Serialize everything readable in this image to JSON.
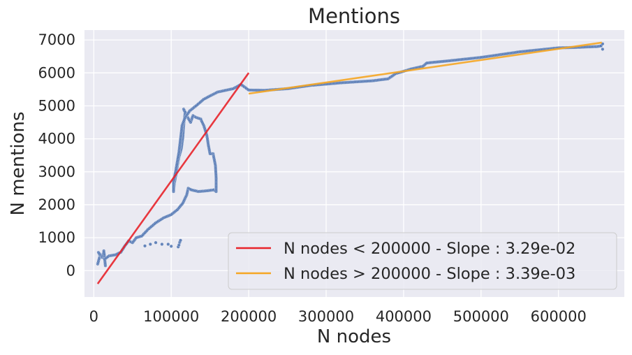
{
  "chart_data": {
    "type": "scatter",
    "title": "Mentions",
    "xlabel": "N nodes",
    "ylabel": "N mentions",
    "xlim": [
      -12000,
      685000
    ],
    "ylim": [
      -800,
      7300
    ],
    "xticks": [
      0,
      100000,
      200000,
      300000,
      400000,
      500000,
      600000
    ],
    "xtick_labels": [
      "0",
      "100000",
      "200000",
      "300000",
      "400000",
      "500000",
      "600000"
    ],
    "yticks": [
      0,
      1000,
      2000,
      3000,
      4000,
      5000,
      6000,
      7000
    ],
    "ytick_labels": [
      "0",
      "1000",
      "2000",
      "3000",
      "4000",
      "5000",
      "6000",
      "7000"
    ],
    "grid": true,
    "legend_position": "bottom-right",
    "colors": {
      "points": "#4c72b0",
      "fit_low": "#e8232a",
      "fit_high": "#f5a623",
      "plot_bg": "#eaeaf2",
      "grid": "#ffffff"
    },
    "scatter_path": [
      [
        5000,
        200
      ],
      [
        8000,
        450
      ],
      [
        6000,
        550
      ],
      [
        11000,
        400
      ],
      [
        13000,
        600
      ],
      [
        15000,
        150
      ],
      [
        14000,
        350
      ],
      [
        20000,
        450
      ],
      [
        28000,
        480
      ],
      [
        35000,
        560
      ],
      [
        40000,
        750
      ],
      [
        45000,
        900
      ],
      [
        50000,
        850
      ],
      [
        55000,
        1000
      ],
      [
        62000,
        1050
      ],
      [
        70000,
        1250
      ],
      [
        80000,
        1450
      ],
      [
        90000,
        1600
      ],
      [
        100000,
        1700
      ],
      [
        108000,
        1850
      ],
      [
        115000,
        2050
      ],
      [
        120000,
        2300
      ],
      [
        122000,
        2500
      ],
      [
        126000,
        2450
      ],
      [
        135000,
        2400
      ],
      [
        145000,
        2420
      ],
      [
        155000,
        2450
      ],
      [
        158000,
        2400
      ],
      [
        158000,
        2800
      ],
      [
        157000,
        3200
      ],
      [
        154000,
        3550
      ],
      [
        150000,
        3550
      ],
      [
        148000,
        3800
      ],
      [
        146000,
        4100
      ],
      [
        142000,
        4400
      ],
      [
        138000,
        4600
      ],
      [
        132000,
        4650
      ],
      [
        128000,
        4700
      ],
      [
        125000,
        4500
      ],
      [
        120000,
        4700
      ],
      [
        116000,
        4900
      ],
      [
        118000,
        4800
      ],
      [
        116000,
        4400
      ],
      [
        115000,
        4050
      ],
      [
        113000,
        3700
      ],
      [
        110000,
        3450
      ],
      [
        108000,
        3200
      ],
      [
        106000,
        2900
      ],
      [
        104000,
        2650
      ],
      [
        103000,
        2400
      ],
      [
        103000,
        2700
      ],
      [
        106000,
        3050
      ],
      [
        110000,
        3600
      ],
      [
        112000,
        4000
      ],
      [
        114000,
        4400
      ],
      [
        118000,
        4650
      ],
      [
        124000,
        4850
      ],
      [
        132000,
        5000
      ],
      [
        142000,
        5200
      ],
      [
        150000,
        5300
      ],
      [
        160000,
        5420
      ],
      [
        170000,
        5470
      ],
      [
        180000,
        5520
      ],
      [
        190000,
        5650
      ],
      [
        200000,
        5480
      ],
      [
        220000,
        5470
      ],
      [
        250000,
        5520
      ],
      [
        280000,
        5620
      ],
      [
        320000,
        5700
      ],
      [
        360000,
        5760
      ],
      [
        380000,
        5820
      ],
      [
        390000,
        5980
      ],
      [
        410000,
        6120
      ],
      [
        425000,
        6200
      ],
      [
        430000,
        6300
      ],
      [
        460000,
        6370
      ],
      [
        500000,
        6470
      ],
      [
        550000,
        6640
      ],
      [
        600000,
        6760
      ],
      [
        620000,
        6770
      ],
      [
        640000,
        6790
      ],
      [
        650000,
        6800
      ],
      [
        655000,
        6820
      ]
    ],
    "outlier_points": [
      [
        66000,
        750
      ],
      [
        73000,
        800
      ],
      [
        80000,
        850
      ],
      [
        88000,
        800
      ],
      [
        96000,
        800
      ],
      [
        100000,
        740
      ],
      [
        109000,
        720
      ],
      [
        110000,
        780
      ],
      [
        111000,
        860
      ],
      [
        112000,
        920
      ],
      [
        657000,
        6720
      ],
      [
        657000,
        6880
      ]
    ],
    "series": [
      {
        "name": "N nodes < 200000 - Slope : 3.29e-02",
        "x": [
          5000,
          200000
        ],
        "y": [
          -400,
          6000
        ]
      },
      {
        "name": "N nodes > 200000 - Slope : 3.39e-03",
        "x": [
          200000,
          656000
        ],
        "y": [
          5370,
          6920
        ]
      }
    ]
  }
}
